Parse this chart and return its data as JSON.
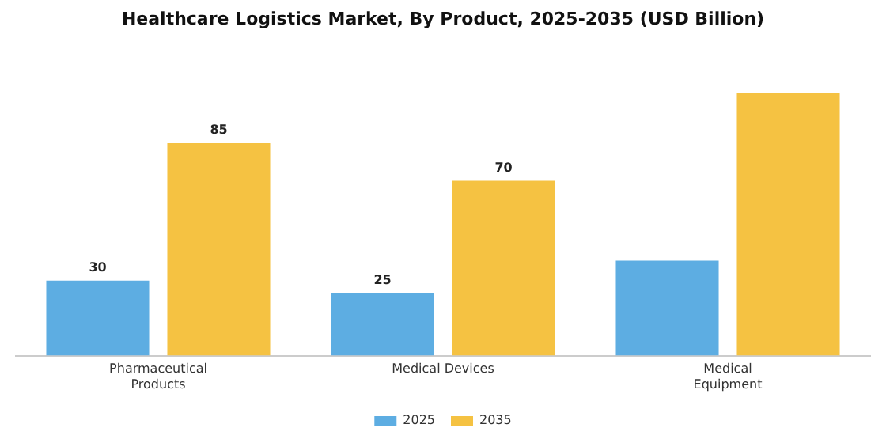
{
  "chart_data": {
    "type": "bar",
    "title": "Healthcare Logistics Market, By Product, 2025-2035 (USD Billion)",
    "categories": [
      "Pharmaceutical Products",
      "Medical Devices",
      "Medical Equipment"
    ],
    "series": [
      {
        "name": "2025",
        "color": "#5dade2",
        "values": [
          30,
          25,
          38
        ],
        "value_labels": [
          "30",
          "25",
          null
        ]
      },
      {
        "name": "2035",
        "color": "#f5c242",
        "values": [
          85,
          70,
          105
        ],
        "value_labels": [
          "85",
          "70",
          null
        ]
      }
    ],
    "legend": "bottom",
    "grid": false
  }
}
